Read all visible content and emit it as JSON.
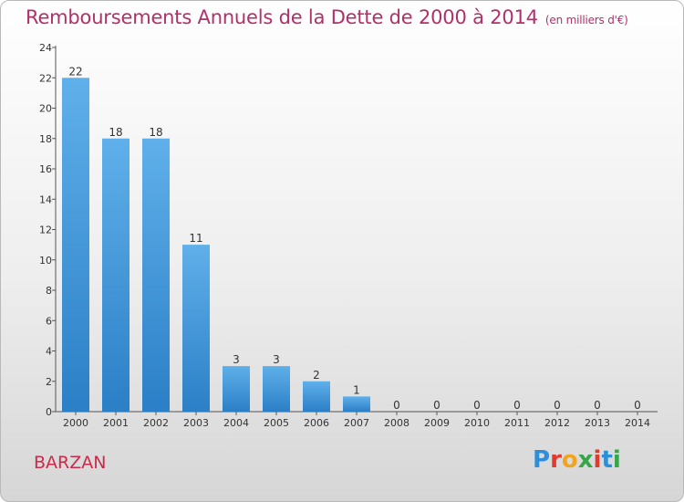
{
  "header": {
    "title": "Remboursements Annuels de la Dette de 2000 à 2014",
    "unit": "(en milliers d'€)"
  },
  "footer": {
    "place": "BARZAN",
    "logo_letters": [
      "P",
      "r",
      "o",
      "x",
      "i",
      "t",
      "i"
    ],
    "logo_colors": [
      "#2e8fd8",
      "#e23b2e",
      "#f2a41a",
      "#35a64a",
      "#e23b2e",
      "#2e8fd8",
      "#35a64a"
    ]
  },
  "chart_data": {
    "type": "bar",
    "categories": [
      "2000",
      "2001",
      "2002",
      "2003",
      "2004",
      "2005",
      "2006",
      "2007",
      "2008",
      "2009",
      "2010",
      "2011",
      "2012",
      "2013",
      "2014"
    ],
    "values": [
      22,
      18,
      18,
      11,
      3,
      3,
      2,
      1,
      0,
      0,
      0,
      0,
      0,
      0,
      0
    ],
    "title": "Remboursements Annuels de la Dette de 2000 à 2014",
    "ylim": [
      0,
      24
    ],
    "yticks": [
      0,
      2,
      4,
      6,
      8,
      10,
      12,
      14,
      16,
      18,
      20,
      22,
      24
    ],
    "grid": false,
    "bar_color": "#3d92d6"
  }
}
